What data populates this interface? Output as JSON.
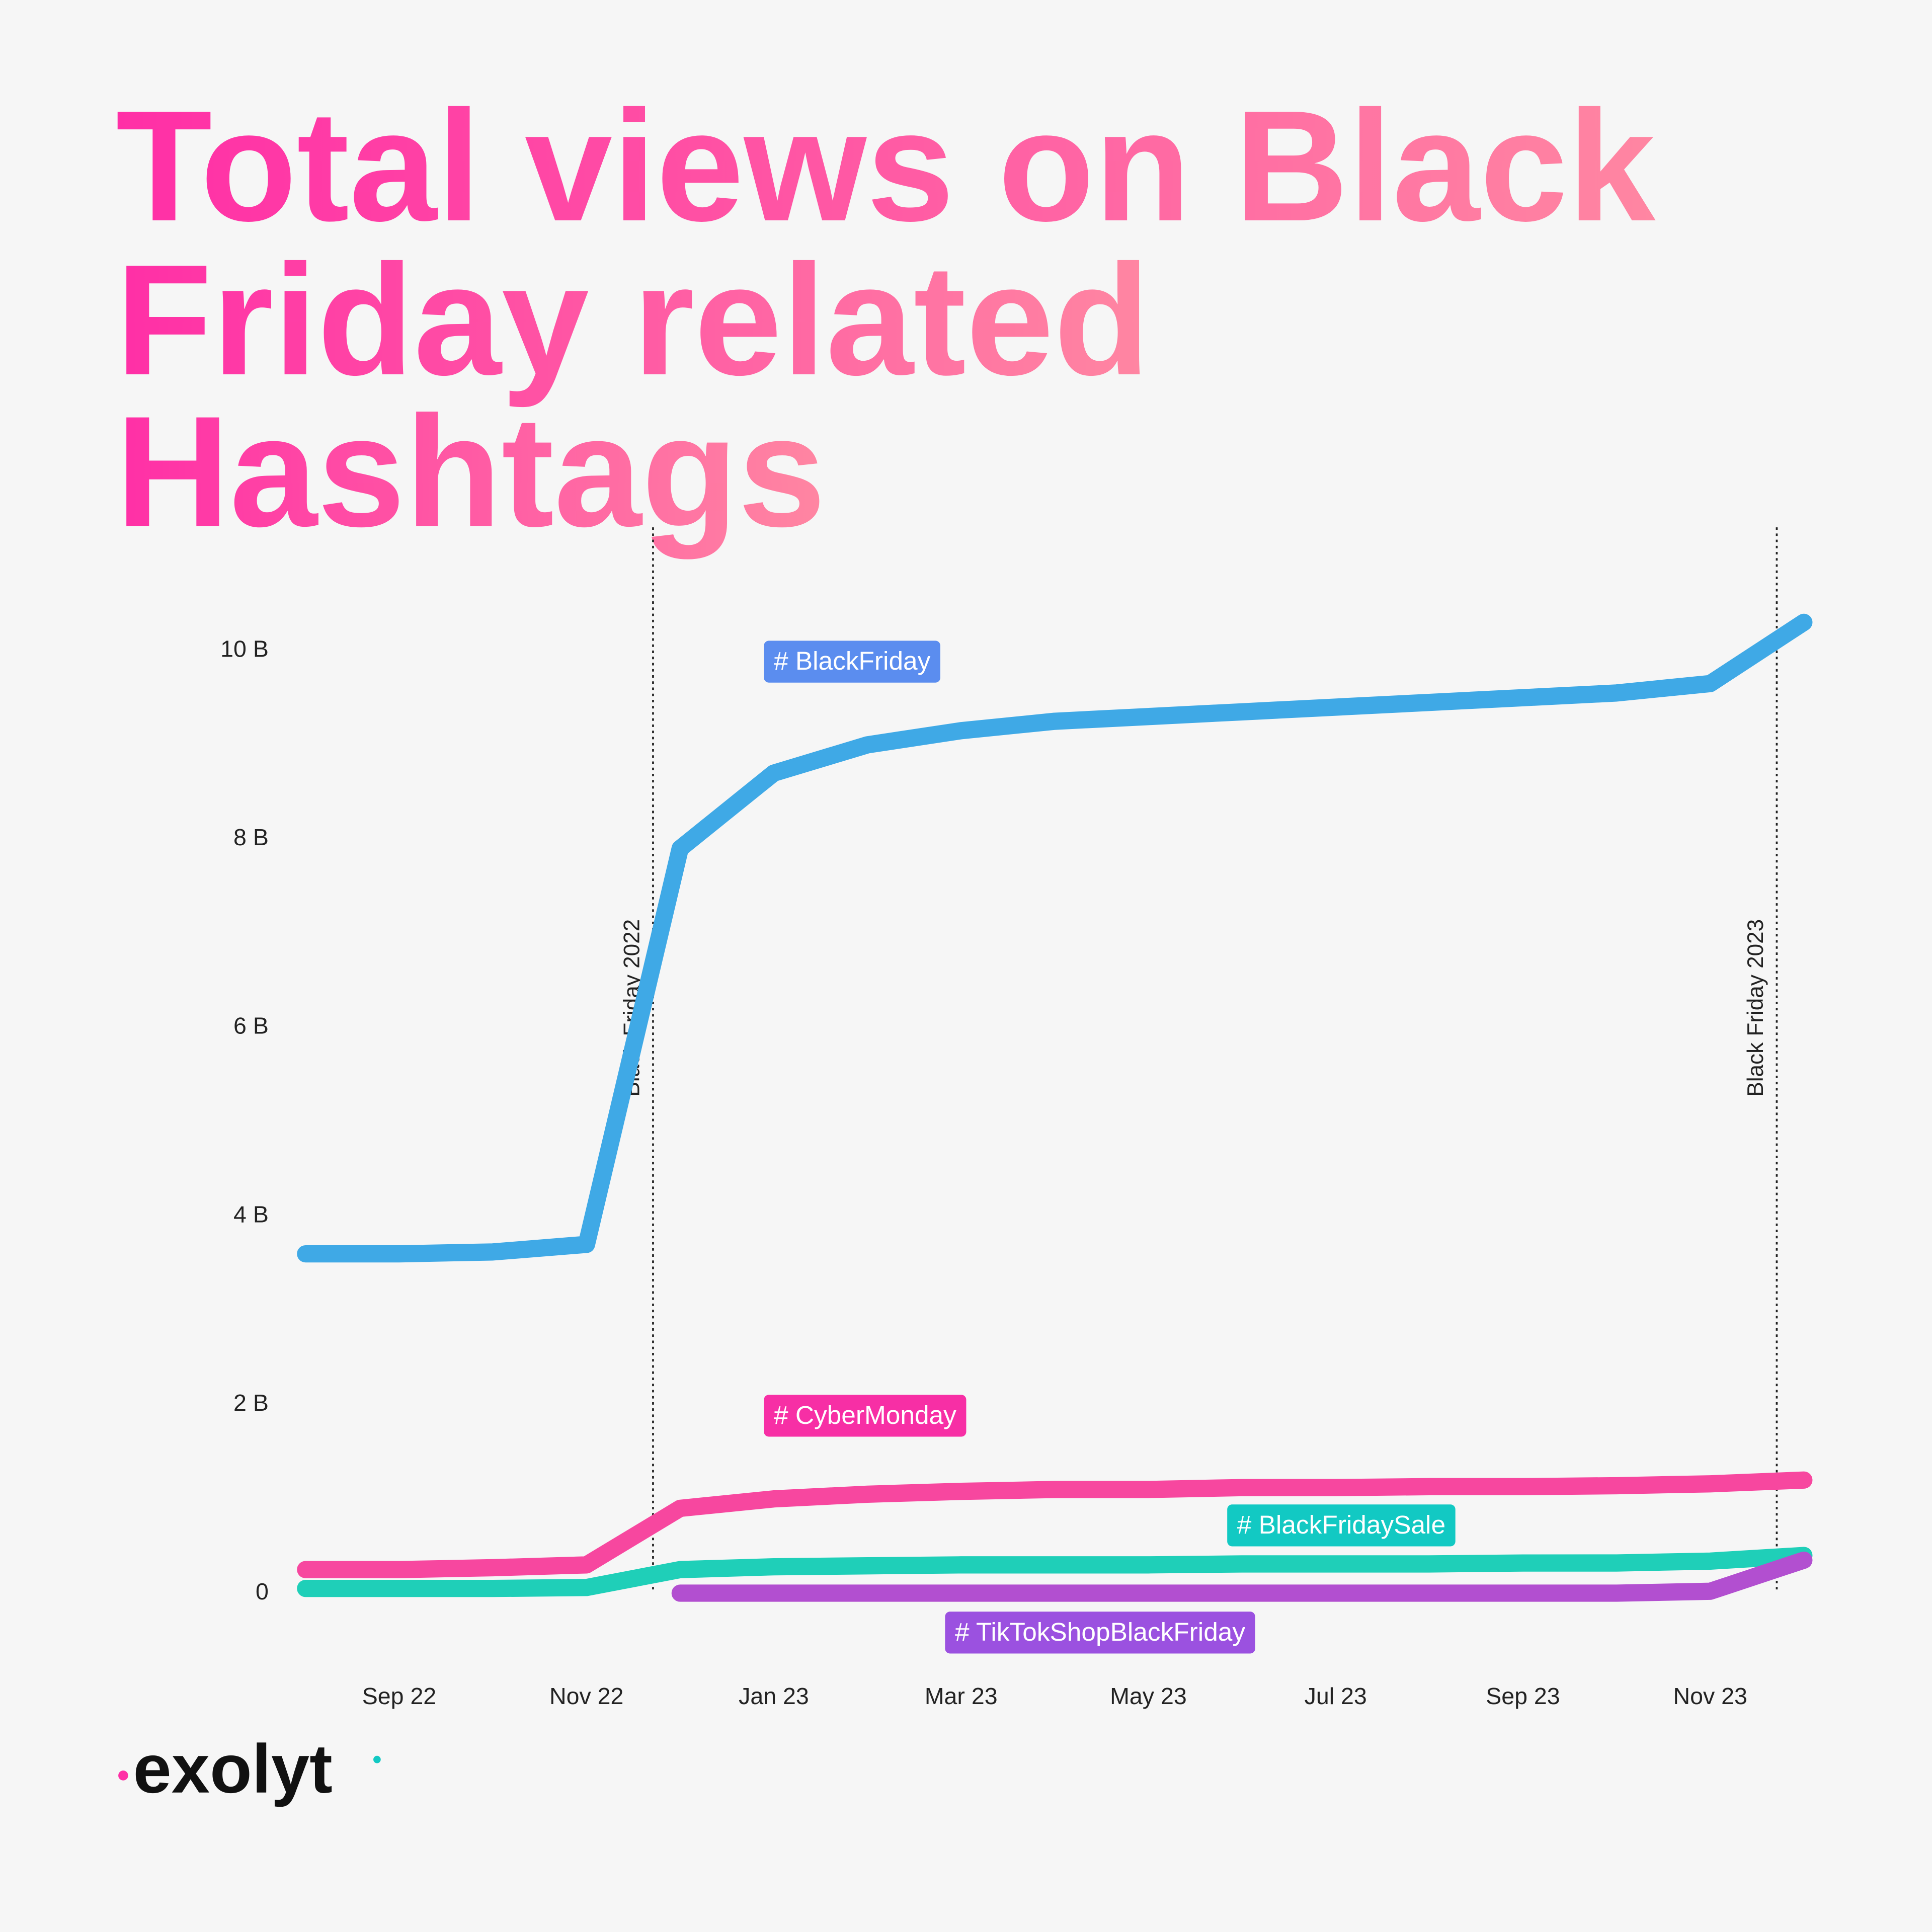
{
  "chart_data": {
    "type": "line",
    "title": [
      "Total views on Black",
      "Friday related",
      "Hashtags"
    ],
    "x": [
      "2022-08",
      "2022-09",
      "2022-10",
      "2022-11",
      "2022-12",
      "2023-01",
      "2023-02",
      "2023-03",
      "2023-04",
      "2023-05",
      "2023-06",
      "2023-07",
      "2023-08",
      "2023-09",
      "2023-10",
      "2023-11",
      "2023-12"
    ],
    "series": [
      {
        "name": "# BlackFriday",
        "color": "#3fa9e6",
        "values": [
          3.6,
          3.6,
          3.62,
          3.7,
          7.9,
          8.7,
          9.0,
          9.15,
          9.25,
          9.3,
          9.35,
          9.4,
          9.45,
          9.5,
          9.55,
          9.65,
          10.3
        ]
      },
      {
        "name": "# CyberMonday",
        "color": "#f7479f",
        "values": [
          0.25,
          0.25,
          0.27,
          0.3,
          0.9,
          1.0,
          1.05,
          1.08,
          1.1,
          1.1,
          1.12,
          1.12,
          1.13,
          1.13,
          1.14,
          1.16,
          1.2
        ]
      },
      {
        "name": "# BlackFridaySale",
        "color": "#1fcfb8",
        "values": [
          0.05,
          0.05,
          0.05,
          0.06,
          0.25,
          0.28,
          0.29,
          0.3,
          0.3,
          0.3,
          0.31,
          0.31,
          0.31,
          0.32,
          0.32,
          0.34,
          0.4
        ]
      },
      {
        "name": "# TikTokShopBlackFriday",
        "color": "#b24fd0",
        "values": [
          null,
          null,
          null,
          null,
          0,
          0,
          0,
          0,
          0,
          0,
          0,
          0,
          0,
          0,
          0,
          0.02,
          0.35
        ]
      }
    ],
    "label_colors": [
      "#5b8def",
      "#f72fa5",
      "#12c9c3",
      "#9b51e0"
    ],
    "xlim": [
      "2022-08",
      "2023-12"
    ],
    "xticks": [
      {
        "value": "2022-09",
        "label": "Sep 22"
      },
      {
        "value": "2022-11",
        "label": "Nov 22"
      },
      {
        "value": "2023-01",
        "label": "Jan 23"
      },
      {
        "value": "2023-03",
        "label": "Mar 23"
      },
      {
        "value": "2023-05",
        "label": "May 23"
      },
      {
        "value": "2023-07",
        "label": "Jul 23"
      },
      {
        "value": "2023-09",
        "label": "Sep 23"
      },
      {
        "value": "2023-11",
        "label": "Nov 23"
      }
    ],
    "ylim": [
      0,
      10
    ],
    "yticks": [
      0,
      {
        "value": 2,
        "label": "2 B"
      },
      {
        "value": 4,
        "label": "4 B"
      },
      {
        "value": 6,
        "label": "6 B"
      },
      {
        "value": 8,
        "label": "8 B"
      },
      {
        "value": 10,
        "label": "10 B"
      }
    ],
    "annotations": [
      {
        "x": "2022-12",
        "text": "Black Friday 2022"
      },
      {
        "x": "2023-12",
        "text": "Black Friday 2023"
      }
    ],
    "logo": "exolyt"
  }
}
